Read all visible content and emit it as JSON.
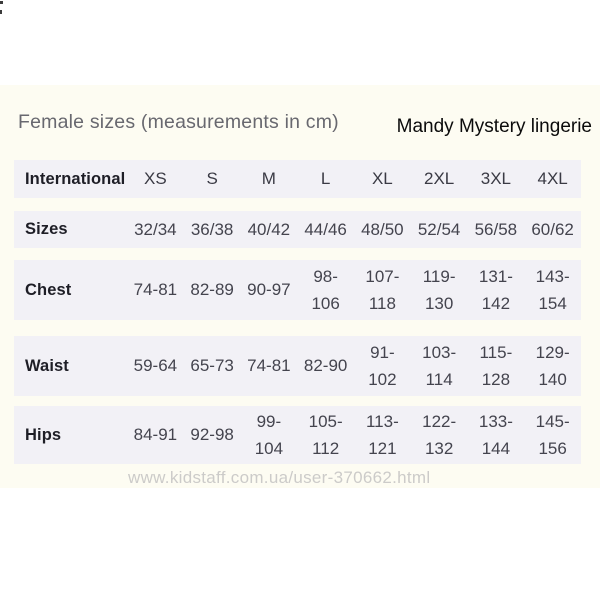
{
  "page": {
    "title": "Female sizes (measurements in cm)",
    "brand": "Mandy Mystery lingerie",
    "watermark": "www.kidstaff.com.ua/user-370662.html"
  },
  "colors": {
    "page_background": "#ffffff",
    "photo_area_background": "#fdfcf2",
    "row_band": "#f2f1f6",
    "title_text": "#68686f",
    "brand_text": "#0b0b0b",
    "label_text": "#1e1e26",
    "value_text": "#44444e",
    "watermark_text": "#cccbc9"
  },
  "table": {
    "header": {
      "label": "International",
      "values": [
        "XS",
        "S",
        "M",
        "L",
        "XL",
        "2XL",
        "3XL",
        "4XL"
      ]
    },
    "rows": [
      {
        "label": "Sizes",
        "values": [
          "32/34",
          "36/38",
          "40/42",
          "44/46",
          "48/50",
          "52/54",
          "56/58",
          "60/62"
        ]
      },
      {
        "label": "Chest",
        "values": [
          "74-81",
          "82-89",
          "90-97",
          "98-\n106",
          "107-\n118",
          "119-\n130",
          "131-\n142",
          "143-\n154"
        ]
      },
      {
        "label": "Waist",
        "values": [
          "59-64",
          "65-73",
          "74-81",
          "82-90",
          "91-\n102",
          "103-\n114",
          "115-\n128",
          "129-\n140"
        ]
      },
      {
        "label": "Hips",
        "values": [
          "84-91",
          "92-98",
          "99-\n104",
          "105-\n112",
          "113-\n121",
          "122-\n132",
          "133-\n144",
          "145-\n156"
        ]
      }
    ]
  },
  "chart_data": {
    "type": "table",
    "title": "Female sizes (measurements in cm)",
    "brand": "Mandy Mystery lingerie",
    "columns": [
      "International",
      "XS",
      "S",
      "M",
      "L",
      "XL",
      "2XL",
      "3XL",
      "4XL"
    ],
    "rows": [
      [
        "Sizes",
        "32/34",
        "36/38",
        "40/42",
        "44/46",
        "48/50",
        "52/54",
        "56/58",
        "60/62"
      ],
      [
        "Chest",
        "74-81",
        "82-89",
        "90-97",
        "98-106",
        "107-118",
        "119-130",
        "131-142",
        "143-154"
      ],
      [
        "Waist",
        "59-64",
        "65-73",
        "74-81",
        "82-90",
        "91-102",
        "103-114",
        "115-128",
        "129-140"
      ],
      [
        "Hips",
        "84-91",
        "92-98",
        "99-104",
        "105-112",
        "113-121",
        "122-132",
        "133-144",
        "145-156"
      ]
    ]
  }
}
